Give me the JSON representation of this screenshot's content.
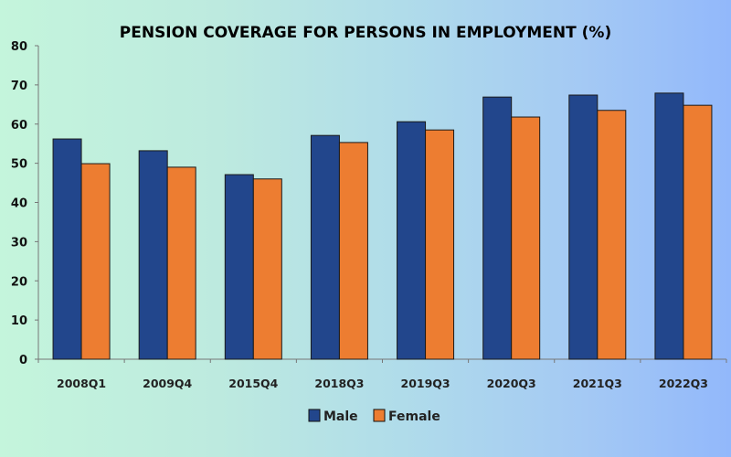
{
  "chart_data": {
    "type": "bar",
    "title": "PENSION COVERAGE FOR PERSONS IN EMPLOYMENT (%)",
    "xlabel": "",
    "ylabel": "",
    "ylim": [
      0,
      80
    ],
    "yticks": [
      0,
      10,
      20,
      30,
      40,
      50,
      60,
      70,
      80
    ],
    "grid": false,
    "legend_position": "bottom-center",
    "categories": [
      "2008Q1",
      "2009Q4",
      "2015Q4",
      "2018Q3",
      "2019Q3",
      "2020Q3",
      "2021Q3",
      "2022Q3"
    ],
    "series": [
      {
        "name": "Male",
        "color": "#22468c",
        "values": [
          56.2,
          53.2,
          47.1,
          57.1,
          60.6,
          66.9,
          67.4,
          67.9
        ]
      },
      {
        "name": "Female",
        "color": "#ed7d31",
        "values": [
          49.9,
          49.0,
          46.0,
          55.3,
          58.5,
          61.8,
          63.5,
          64.8
        ]
      }
    ]
  }
}
